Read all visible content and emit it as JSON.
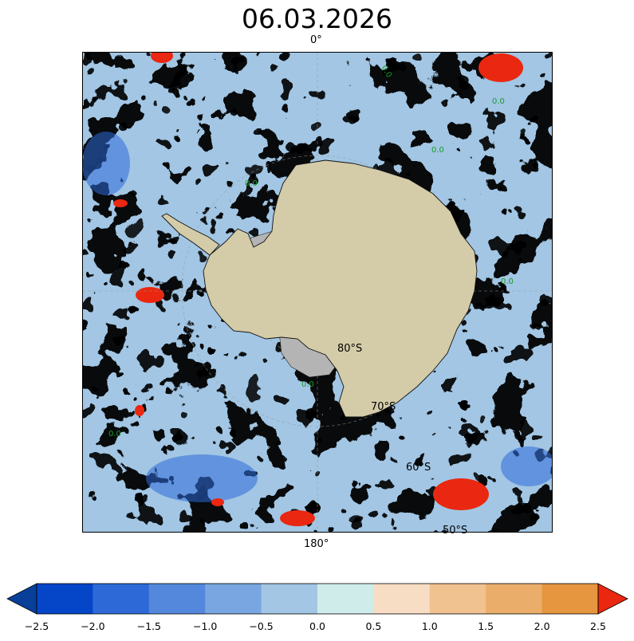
{
  "title": "06.03.2026",
  "meridian_labels": {
    "top": "0°",
    "bottom": "180°"
  },
  "latitude_labels": [
    "80°S",
    "70°S",
    "60°S",
    "50°S"
  ],
  "map": {
    "projection": "south-polar-stereographic",
    "continent": "Antarctica",
    "land_color": "#d4cba8",
    "ice_shelf_color": "#b4b4b4",
    "graticule": true,
    "contour_label": "0.0",
    "contour_label_color": "#1a9a2a"
  },
  "colorbar": {
    "ticks": [
      "−2.5",
      "−2.0",
      "−1.5",
      "−1.0",
      "−0.5",
      "0.0",
      "0.5",
      "1.0",
      "1.5",
      "2.0",
      "2.5"
    ],
    "levels": [
      -2.5,
      -2.0,
      -1.5,
      -1.0,
      -0.5,
      0.0,
      0.5,
      1.0,
      1.5,
      2.0,
      2.5
    ],
    "colors": [
      "#0546c8",
      "#2d6ad8",
      "#5388dc",
      "#79a6e0",
      "#a2c6e4",
      "#d0ecea",
      "#f7ddc3",
      "#f0c290",
      "#eaae6a",
      "#e6963e"
    ],
    "under_color": "#083f99",
    "over_color": "#ea2710",
    "extend": "both"
  }
}
